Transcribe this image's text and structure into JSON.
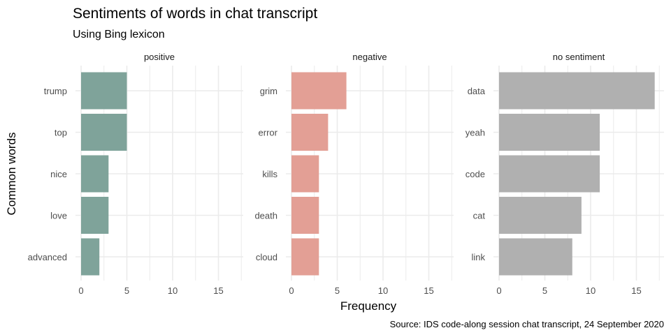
{
  "chart_data": {
    "type": "bar",
    "title": "Sentiments of words in chat transcript",
    "subtitle": "Using Bing lexicon",
    "xlabel": "Frequency",
    "ylabel": "Common words",
    "caption": "Source: IDS code-along session chat transcript, 24 September 2020",
    "xlim": [
      0,
      18
    ],
    "x_ticks": [
      "0",
      "5",
      "10",
      "15"
    ],
    "grid": true,
    "facets": [
      {
        "name": "positive",
        "color": "#7fa39a",
        "categories": [
          "trump",
          "top",
          "nice",
          "love",
          "advanced"
        ],
        "values": [
          5,
          5,
          3,
          3,
          2
        ]
      },
      {
        "name": "negative",
        "color": "#e39f95",
        "categories": [
          "grim",
          "error",
          "kills",
          "death",
          "cloud"
        ],
        "values": [
          6,
          4,
          3,
          3,
          3
        ]
      },
      {
        "name": "no sentiment",
        "color": "#b0b0b0",
        "categories": [
          "data",
          "yeah",
          "code",
          "cat",
          "link"
        ],
        "values": [
          17,
          11,
          11,
          9,
          8
        ]
      }
    ]
  }
}
